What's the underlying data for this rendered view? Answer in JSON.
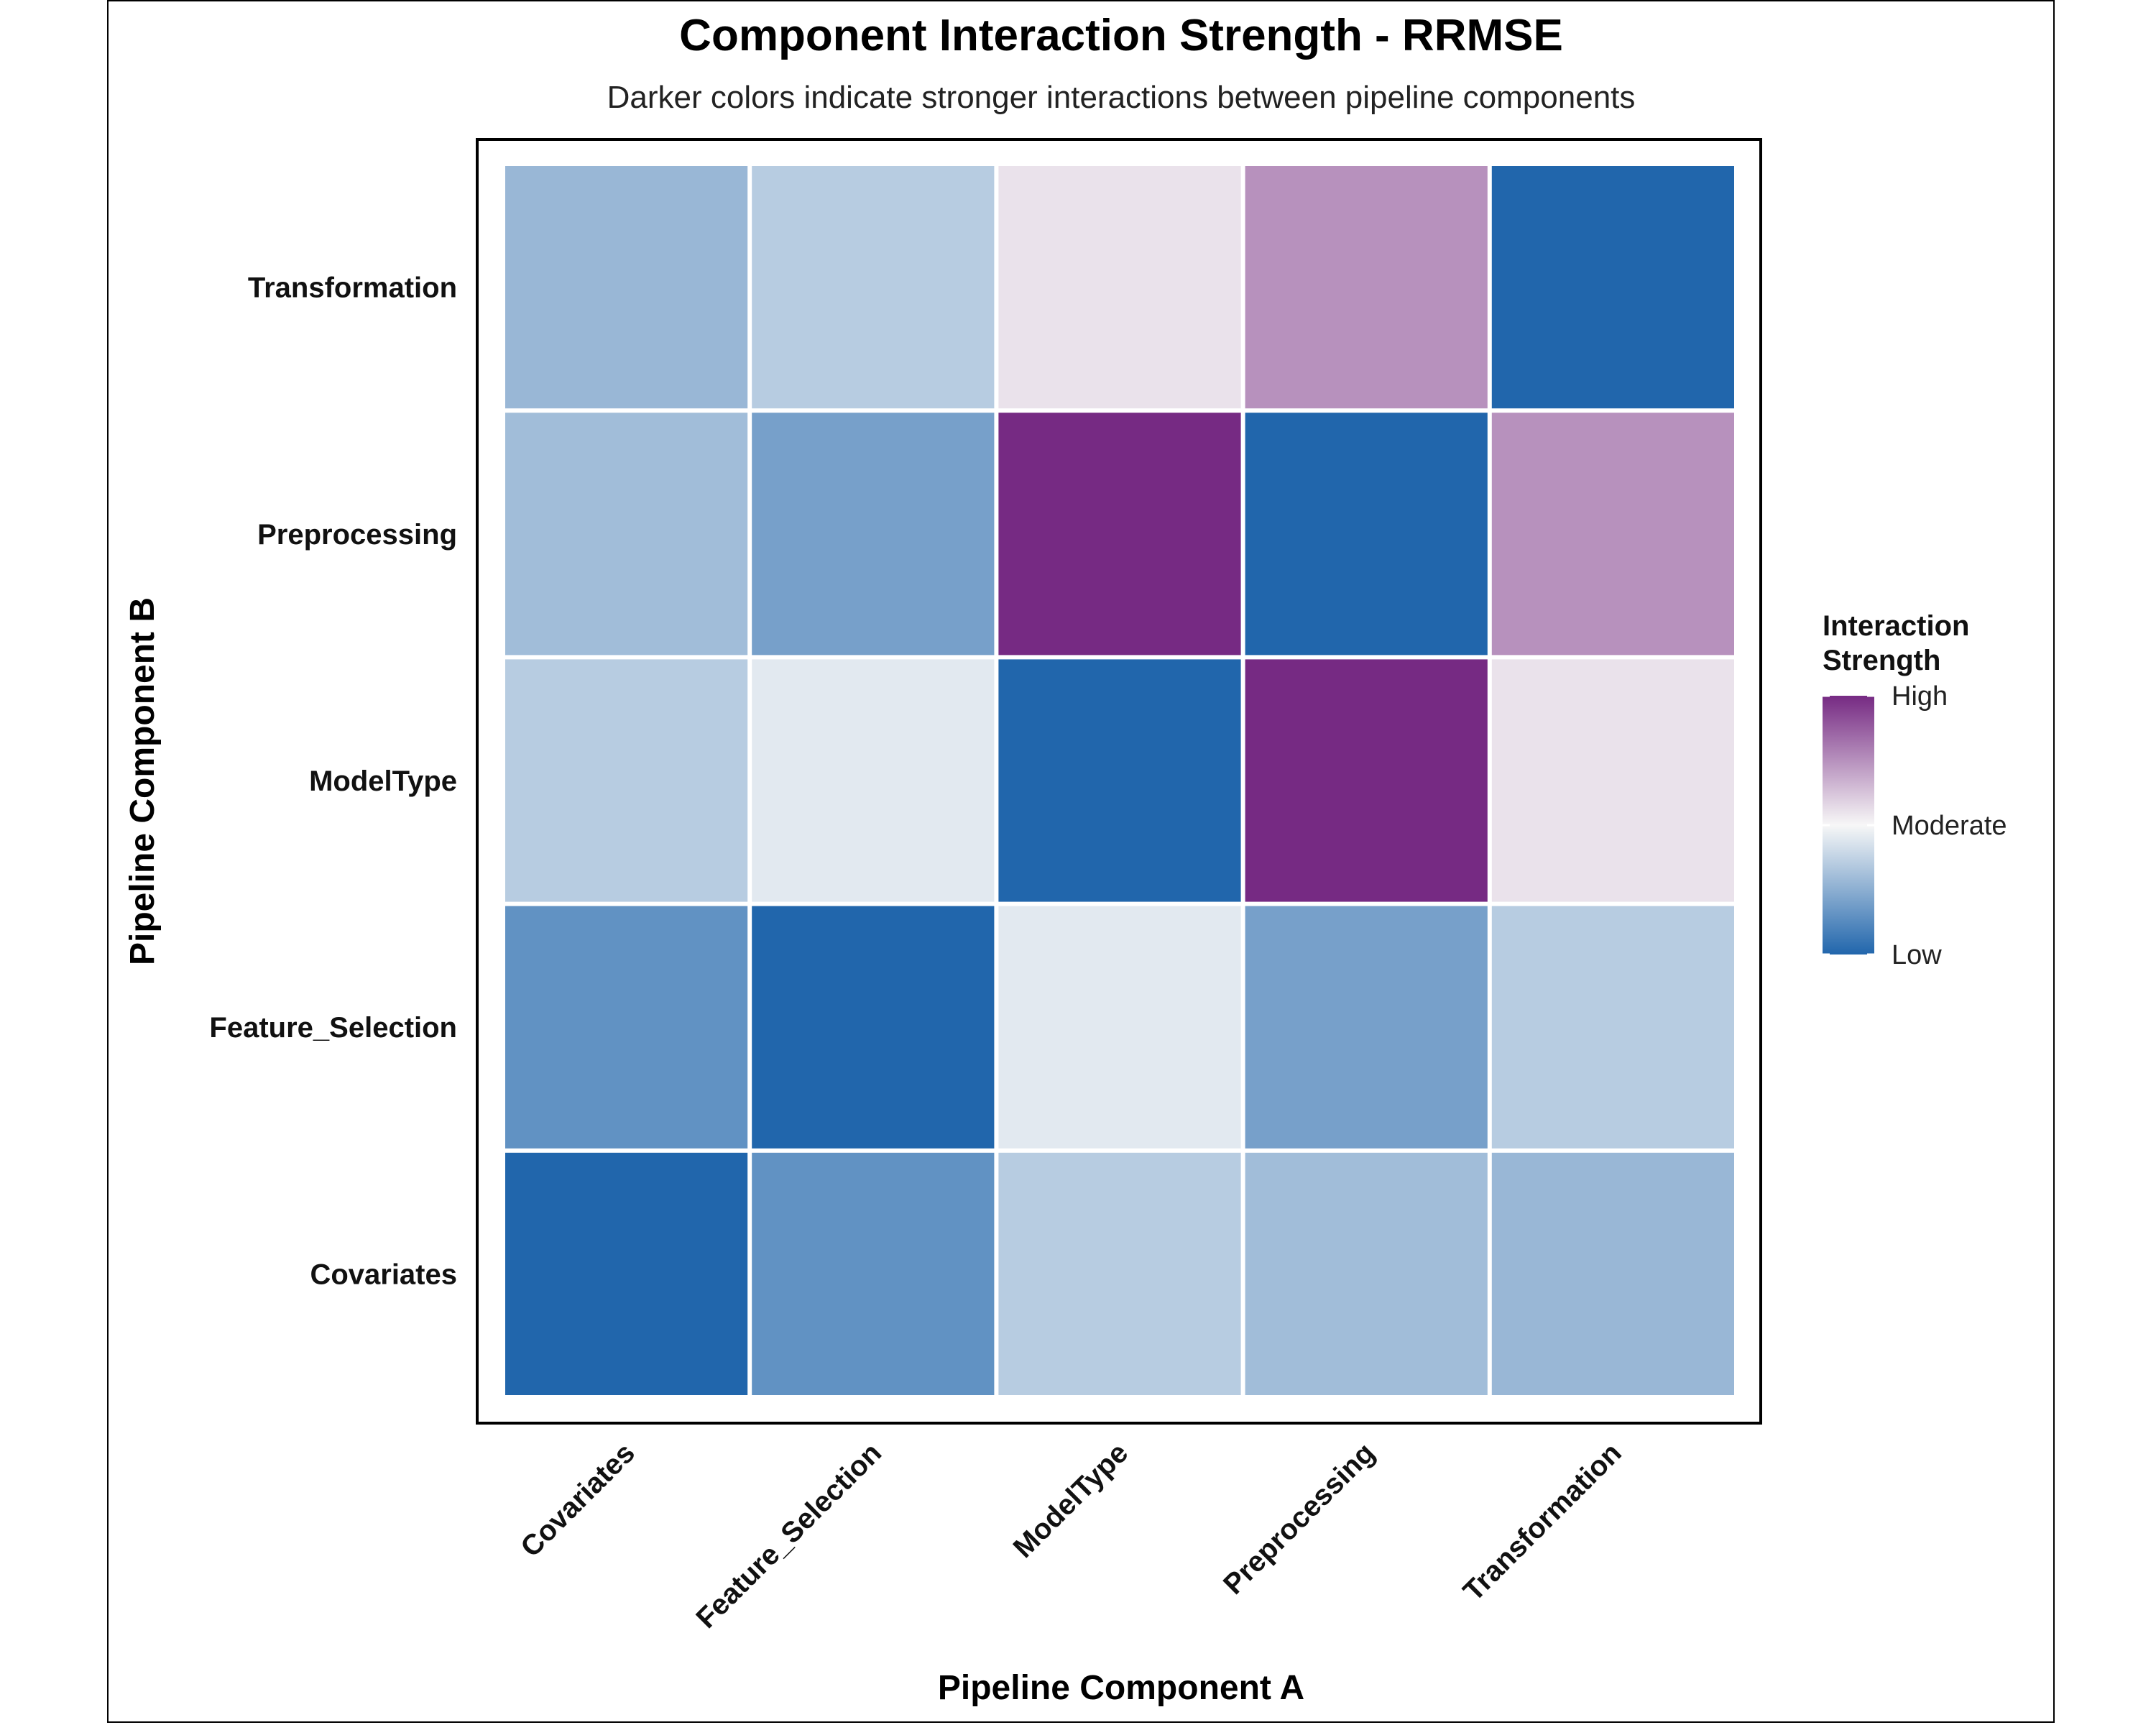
{
  "chart_data": {
    "type": "heatmap",
    "title": "Component Interaction Strength - RRMSE",
    "subtitle": "Darker colors indicate stronger interactions between pipeline components",
    "xlabel": "Pipeline Component A",
    "ylabel": "Pipeline Component B",
    "x_categories": [
      "Covariates",
      "Feature_Selection",
      "ModelType",
      "Preprocessing",
      "Transformation"
    ],
    "y_categories": [
      "Covariates",
      "Feature_Selection",
      "ModelType",
      "Preprocessing",
      "Transformation"
    ],
    "values": [
      [
        0.0,
        0.15,
        0.35,
        0.3,
        0.28
      ],
      [
        0.15,
        0.0,
        0.45,
        0.2,
        0.35
      ],
      [
        0.35,
        0.45,
        0.0,
        1.0,
        0.55
      ],
      [
        0.3,
        0.2,
        1.0,
        0.0,
        0.75
      ],
      [
        0.28,
        0.35,
        0.55,
        0.75,
        0.0
      ]
    ],
    "value_range": [
      0,
      1
    ],
    "legend": {
      "title_line1": "Interaction",
      "title_line2": "Strength",
      "labels": [
        "High",
        "Moderate",
        "Low"
      ],
      "position": "right"
    },
    "color_scale": {
      "low": "#2166ac",
      "mid": "#f7f7f7",
      "high": "#762a83"
    },
    "grid": false
  }
}
